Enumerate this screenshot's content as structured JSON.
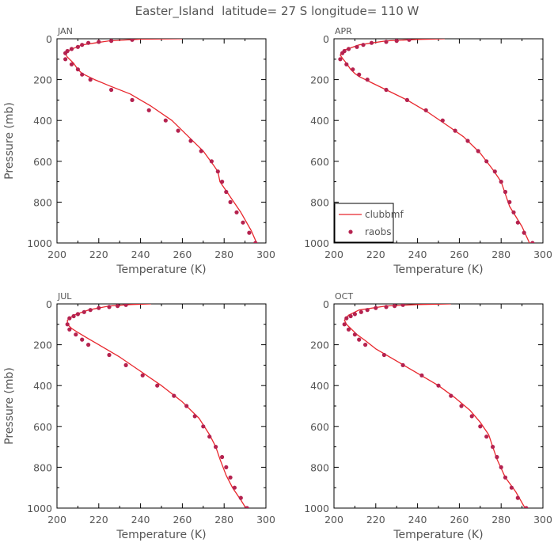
{
  "title": "Easter_Island  latitude= 27 S longitude= 110 W",
  "colors": {
    "model_line": "#e8262c",
    "obs_dots": "#b5224f",
    "axes": "#000000",
    "text": "#555555"
  },
  "legend": {
    "model_label": "clubbmf",
    "obs_label": "raobs"
  },
  "chart_data": [
    {
      "type": "line",
      "panel_label": "JAN",
      "xlabel": "Temperature (K)",
      "ylabel": "Pressure (mb)",
      "xlim": [
        200,
        300
      ],
      "ylim": [
        1000,
        0
      ],
      "xticks": [
        200,
        220,
        240,
        260,
        280,
        300
      ],
      "yticks": [
        0,
        200,
        400,
        600,
        800,
        1000
      ],
      "grid": false,
      "legend": false,
      "series": [
        {
          "name": "clubbmf",
          "style": "line",
          "x": [
            260,
            240,
            225,
            212,
            206,
            204,
            205,
            208,
            210,
            212,
            215,
            218,
            225,
            235,
            245,
            255,
            263,
            270,
            275,
            277,
            278,
            282,
            288,
            293,
            296
          ],
          "y": [
            0,
            2,
            10,
            30,
            55,
            75,
            90,
            120,
            150,
            170,
            185,
            200,
            230,
            270,
            330,
            400,
            480,
            550,
            620,
            650,
            700,
            760,
            850,
            940,
            1010
          ]
        },
        {
          "name": "raobs",
          "style": "points",
          "x": [
            236,
            226,
            220,
            215,
            212,
            210,
            207,
            205,
            204,
            204,
            207,
            210,
            212,
            216,
            226,
            236,
            244,
            252,
            258,
            264,
            269,
            274,
            277,
            279,
            281,
            283,
            286,
            289,
            292,
            295
          ],
          "y": [
            5,
            10,
            15,
            20,
            30,
            40,
            50,
            60,
            70,
            100,
            125,
            150,
            175,
            200,
            250,
            300,
            350,
            400,
            450,
            500,
            550,
            600,
            650,
            700,
            750,
            800,
            850,
            900,
            950,
            1000
          ]
        }
      ]
    },
    {
      "type": "line",
      "panel_label": "APR",
      "xlabel": "Temperature (K)",
      "ylabel": "",
      "xlim": [
        200,
        300
      ],
      "ylim": [
        1000,
        0
      ],
      "xticks": [
        200,
        220,
        240,
        260,
        280,
        300
      ],
      "yticks": [
        0,
        200,
        400,
        600,
        800,
        1000
      ],
      "grid": false,
      "legend": "bottom-left",
      "series": [
        {
          "name": "clubbmf",
          "style": "line",
          "x": [
            253,
            240,
            225,
            212,
            205,
            203,
            204,
            206,
            208,
            210,
            212,
            215,
            218,
            225,
            235,
            245,
            255,
            262,
            270,
            276,
            280,
            282,
            284,
            290,
            294
          ],
          "y": [
            0,
            3,
            10,
            30,
            55,
            80,
            95,
            120,
            150,
            170,
            185,
            200,
            215,
            250,
            300,
            360,
            430,
            480,
            560,
            640,
            700,
            760,
            820,
            920,
            1010
          ]
        },
        {
          "name": "raobs",
          "style": "points",
          "x": [
            236,
            230,
            225,
            218,
            214,
            211,
            207,
            205,
            204,
            203,
            206,
            209,
            212,
            216,
            225,
            235,
            244,
            252,
            258,
            264,
            269,
            273,
            277,
            280,
            282,
            284,
            286,
            288,
            291,
            295
          ],
          "y": [
            5,
            10,
            15,
            20,
            30,
            40,
            50,
            60,
            70,
            100,
            125,
            150,
            175,
            200,
            250,
            300,
            350,
            400,
            450,
            500,
            550,
            600,
            650,
            700,
            750,
            800,
            850,
            900,
            950,
            1000
          ]
        }
      ]
    },
    {
      "type": "line",
      "panel_label": "JUL",
      "xlabel": "Temperature (K)",
      "ylabel": "Pressure (mb)",
      "xlim": [
        200,
        300
      ],
      "ylim": [
        1000,
        0
      ],
      "xticks": [
        200,
        220,
        240,
        260,
        280,
        300
      ],
      "yticks": [
        0,
        200,
        400,
        600,
        800,
        1000
      ],
      "grid": false,
      "legend": false,
      "series": [
        {
          "name": "clubbmf",
          "style": "line",
          "x": [
            245,
            235,
            225,
            215,
            208,
            205,
            205,
            207,
            210,
            215,
            220,
            230,
            240,
            250,
            260,
            268,
            273,
            276,
            278,
            281,
            284,
            288,
            291
          ],
          "y": [
            0,
            3,
            10,
            30,
            55,
            80,
            100,
            120,
            140,
            170,
            200,
            260,
            330,
            400,
            480,
            560,
            640,
            700,
            760,
            840,
            900,
            960,
            1010
          ]
        },
        {
          "name": "raobs",
          "style": "points",
          "x": [
            233,
            229,
            225,
            220,
            216,
            213,
            210,
            208,
            206,
            205,
            206,
            209,
            212,
            215,
            225,
            233,
            241,
            248,
            256,
            262,
            266,
            270,
            273,
            276,
            279,
            281,
            283,
            285,
            288,
            291
          ],
          "y": [
            5,
            10,
            15,
            20,
            30,
            40,
            50,
            60,
            70,
            100,
            125,
            150,
            175,
            200,
            250,
            300,
            350,
            400,
            450,
            500,
            550,
            600,
            650,
            700,
            750,
            800,
            850,
            900,
            950,
            1000
          ]
        }
      ]
    },
    {
      "type": "line",
      "panel_label": "OCT",
      "xlabel": "Temperature (K)",
      "ylabel": "",
      "xlim": [
        200,
        300
      ],
      "ylim": [
        1000,
        0
      ],
      "xticks": [
        200,
        220,
        240,
        260,
        280,
        300
      ],
      "yticks": [
        0,
        200,
        400,
        600,
        800,
        1000
      ],
      "grid": false,
      "legend": false,
      "series": [
        {
          "name": "clubbmf",
          "style": "line",
          "x": [
            256,
            240,
            225,
            212,
            207,
            205,
            206,
            208,
            211,
            215,
            220,
            230,
            240,
            250,
            258,
            265,
            270,
            274,
            276,
            278,
            282,
            287,
            292
          ],
          "y": [
            0,
            3,
            10,
            30,
            55,
            80,
            100,
            120,
            150,
            180,
            220,
            280,
            340,
            400,
            460,
            520,
            580,
            640,
            700,
            760,
            850,
            920,
            1010
          ]
        },
        {
          "name": "raobs",
          "style": "points",
          "x": [
            233,
            229,
            225,
            220,
            216,
            213,
            210,
            208,
            206,
            205,
            207,
            210,
            212,
            215,
            224,
            233,
            242,
            250,
            256,
            261,
            266,
            270,
            273,
            276,
            278,
            280,
            282,
            285,
            288,
            292
          ],
          "y": [
            5,
            10,
            15,
            20,
            30,
            40,
            50,
            60,
            70,
            100,
            125,
            150,
            175,
            200,
            250,
            300,
            350,
            400,
            450,
            500,
            550,
            600,
            650,
            700,
            750,
            800,
            850,
            900,
            950,
            1000
          ]
        }
      ]
    }
  ]
}
